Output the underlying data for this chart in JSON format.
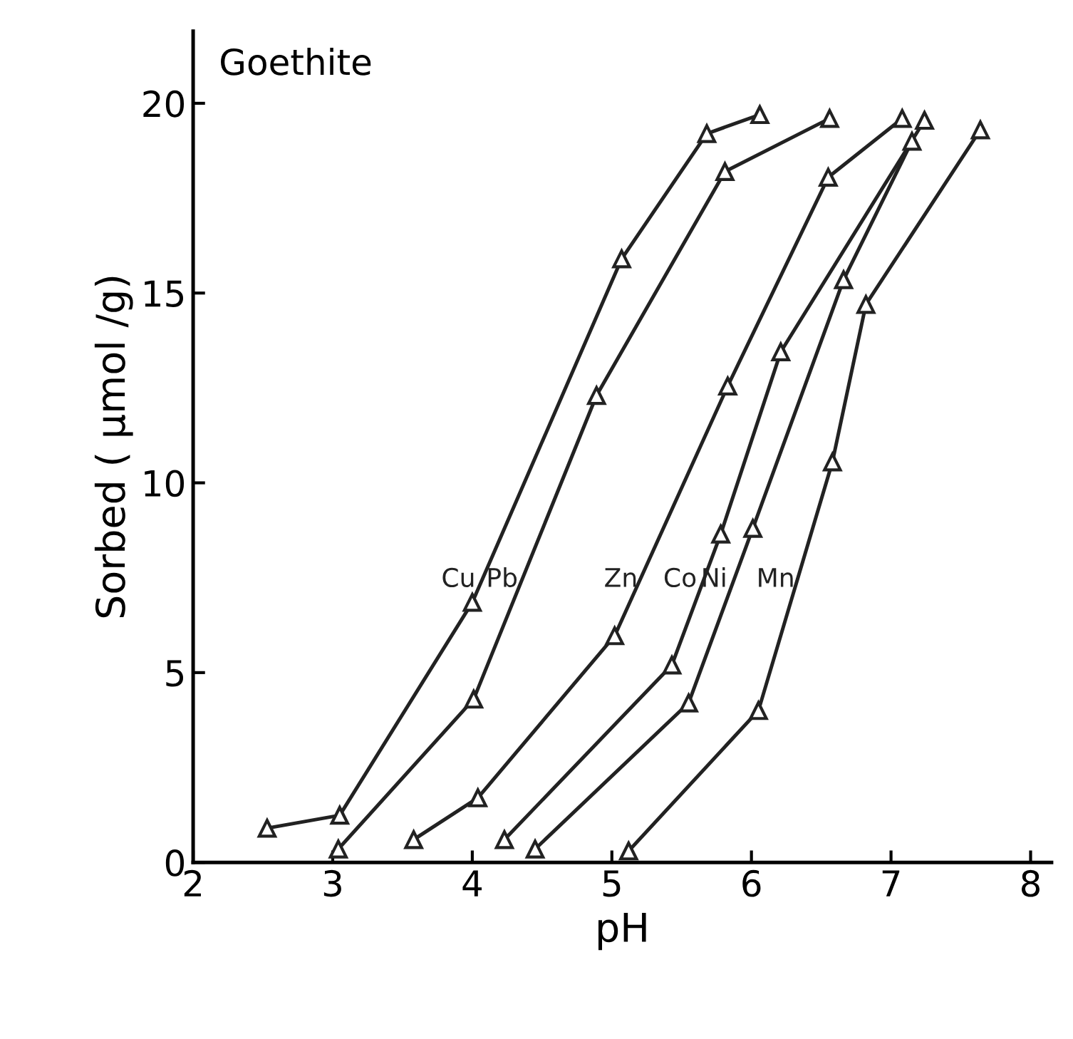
{
  "chart_data": {
    "type": "line",
    "title": "Goethite",
    "xlabel": "pH",
    "ylabel": "Sorbed ( μmol /g)",
    "xlim": [
      2,
      8.15
    ],
    "ylim": [
      0,
      21.9
    ],
    "xticks": [
      2,
      3,
      4,
      5,
      6,
      7,
      8
    ],
    "yticks": [
      0,
      5,
      10,
      15,
      20
    ],
    "marker": "triangle",
    "grid": false,
    "legend": false,
    "series": [
      {
        "name": "Cu",
        "color": "#222222",
        "x": [
          2.53,
          3.05,
          4.0,
          5.07,
          5.68,
          6.06
        ],
        "values": [
          0.9,
          1.24,
          6.85,
          15.9,
          19.2,
          19.7
        ]
      },
      {
        "name": "Pb",
        "color": "#222222",
        "x": [
          3.04,
          4.01,
          4.89,
          5.81,
          6.56
        ],
        "values": [
          0.35,
          4.3,
          12.3,
          18.2,
          19.6
        ]
      },
      {
        "name": "Zn",
        "color": "#222222",
        "x": [
          3.58,
          4.04,
          5.02,
          5.83,
          6.55,
          7.08
        ],
        "values": [
          0.6,
          1.7,
          5.97,
          12.55,
          18.05,
          19.6
        ]
      },
      {
        "name": "Co",
        "color": "#222222",
        "x": [
          4.23,
          5.43,
          5.78,
          6.21,
          7.24
        ],
        "values": [
          0.6,
          5.2,
          8.65,
          13.45,
          19.55
        ]
      },
      {
        "name": "Ni",
        "color": "#222222",
        "x": [
          4.45,
          5.55,
          6.01,
          6.66,
          7.15
        ],
        "values": [
          0.35,
          4.2,
          8.8,
          15.35,
          19.0
        ]
      },
      {
        "name": "Mn",
        "color": "#222222",
        "x": [
          5.12,
          6.05,
          6.58,
          6.82,
          7.64
        ],
        "values": [
          0.3,
          4.0,
          10.55,
          14.7,
          19.3
        ]
      }
    ]
  }
}
